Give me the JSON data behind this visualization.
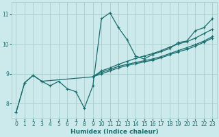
{
  "xlabel": "Humidex (Indice chaleur)",
  "bg_color": "#cce9ec",
  "grid_color": "#aacccc",
  "line_color": "#1a6b6b",
  "xlim": [
    -0.5,
    23.5
  ],
  "ylim": [
    7.5,
    11.4
  ],
  "xticks": [
    0,
    1,
    2,
    3,
    4,
    5,
    6,
    7,
    8,
    9,
    10,
    11,
    12,
    13,
    14,
    15,
    16,
    17,
    18,
    19,
    20,
    21,
    22,
    23
  ],
  "yticks": [
    8,
    9,
    10,
    11
  ],
  "line_zigzag_x": [
    0,
    1,
    2,
    3,
    4,
    5,
    6,
    7,
    8,
    9,
    10,
    11,
    12,
    13,
    14,
    15,
    16,
    17,
    18,
    19,
    20,
    21,
    22,
    23
  ],
  "line_zigzag_y": [
    7.7,
    8.7,
    8.95,
    8.75,
    8.6,
    8.75,
    8.5,
    8.4,
    7.85,
    8.6,
    10.85,
    11.05,
    10.55,
    10.15,
    9.6,
    9.5,
    9.65,
    9.75,
    9.85,
    10.05,
    10.1,
    10.45,
    10.55,
    10.85
  ],
  "line_diag_x": [
    0,
    1,
    2,
    3,
    9,
    10,
    11,
    12,
    13,
    14,
    15,
    16,
    17,
    18,
    19,
    20,
    21,
    22,
    23
  ],
  "line_diag_y": [
    7.7,
    8.7,
    8.95,
    8.75,
    8.9,
    9.05,
    9.15,
    9.25,
    9.32,
    9.38,
    9.44,
    9.5,
    9.58,
    9.68,
    9.78,
    9.88,
    9.98,
    10.1,
    10.25
  ],
  "line_upper_x": [
    9,
    10,
    11,
    12,
    13,
    14,
    15,
    16,
    17,
    18,
    19,
    20,
    21,
    22,
    23
  ],
  "line_upper_y": [
    8.9,
    9.1,
    9.2,
    9.32,
    9.42,
    9.52,
    9.6,
    9.68,
    9.78,
    9.9,
    10.0,
    10.08,
    10.2,
    10.35,
    10.5
  ],
  "line_lower_x": [
    9,
    10,
    11,
    12,
    13,
    14,
    15,
    16,
    17,
    18,
    19,
    20,
    21,
    22,
    23
  ],
  "line_lower_y": [
    8.9,
    9.0,
    9.1,
    9.2,
    9.28,
    9.34,
    9.4,
    9.46,
    9.54,
    9.64,
    9.74,
    9.82,
    9.93,
    10.06,
    10.2
  ]
}
